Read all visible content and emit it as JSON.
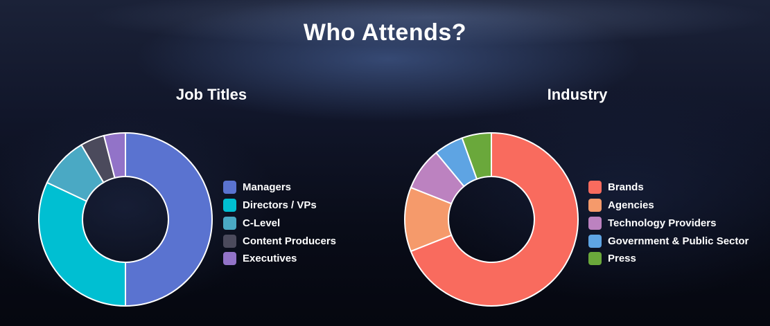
{
  "page": {
    "title": "Who Attends?"
  },
  "chart_data": [
    {
      "type": "pie",
      "title": "Job Titles",
      "categories": [
        "Managers",
        "Directors / VPs",
        "C-Level",
        "Content Producers",
        "Executives"
      ],
      "values": [
        50,
        32,
        9.5,
        4.5,
        4
      ],
      "colors": [
        "#5a73d0",
        "#00bfd2",
        "#4aa9c4",
        "#4b4a5c",
        "#9273c8"
      ],
      "legend": "right"
    },
    {
      "type": "pie",
      "title": "Industry",
      "categories": [
        "Brands",
        "Agencies",
        "Technology Providers",
        "Government & Public Sector",
        "Press"
      ],
      "values": [
        69,
        12,
        8,
        5.5,
        5.5
      ],
      "colors": [
        "#f96b5e",
        "#f59a6b",
        "#bc82c0",
        "#5ea4e3",
        "#6aa83b"
      ],
      "legend": "right"
    }
  ]
}
